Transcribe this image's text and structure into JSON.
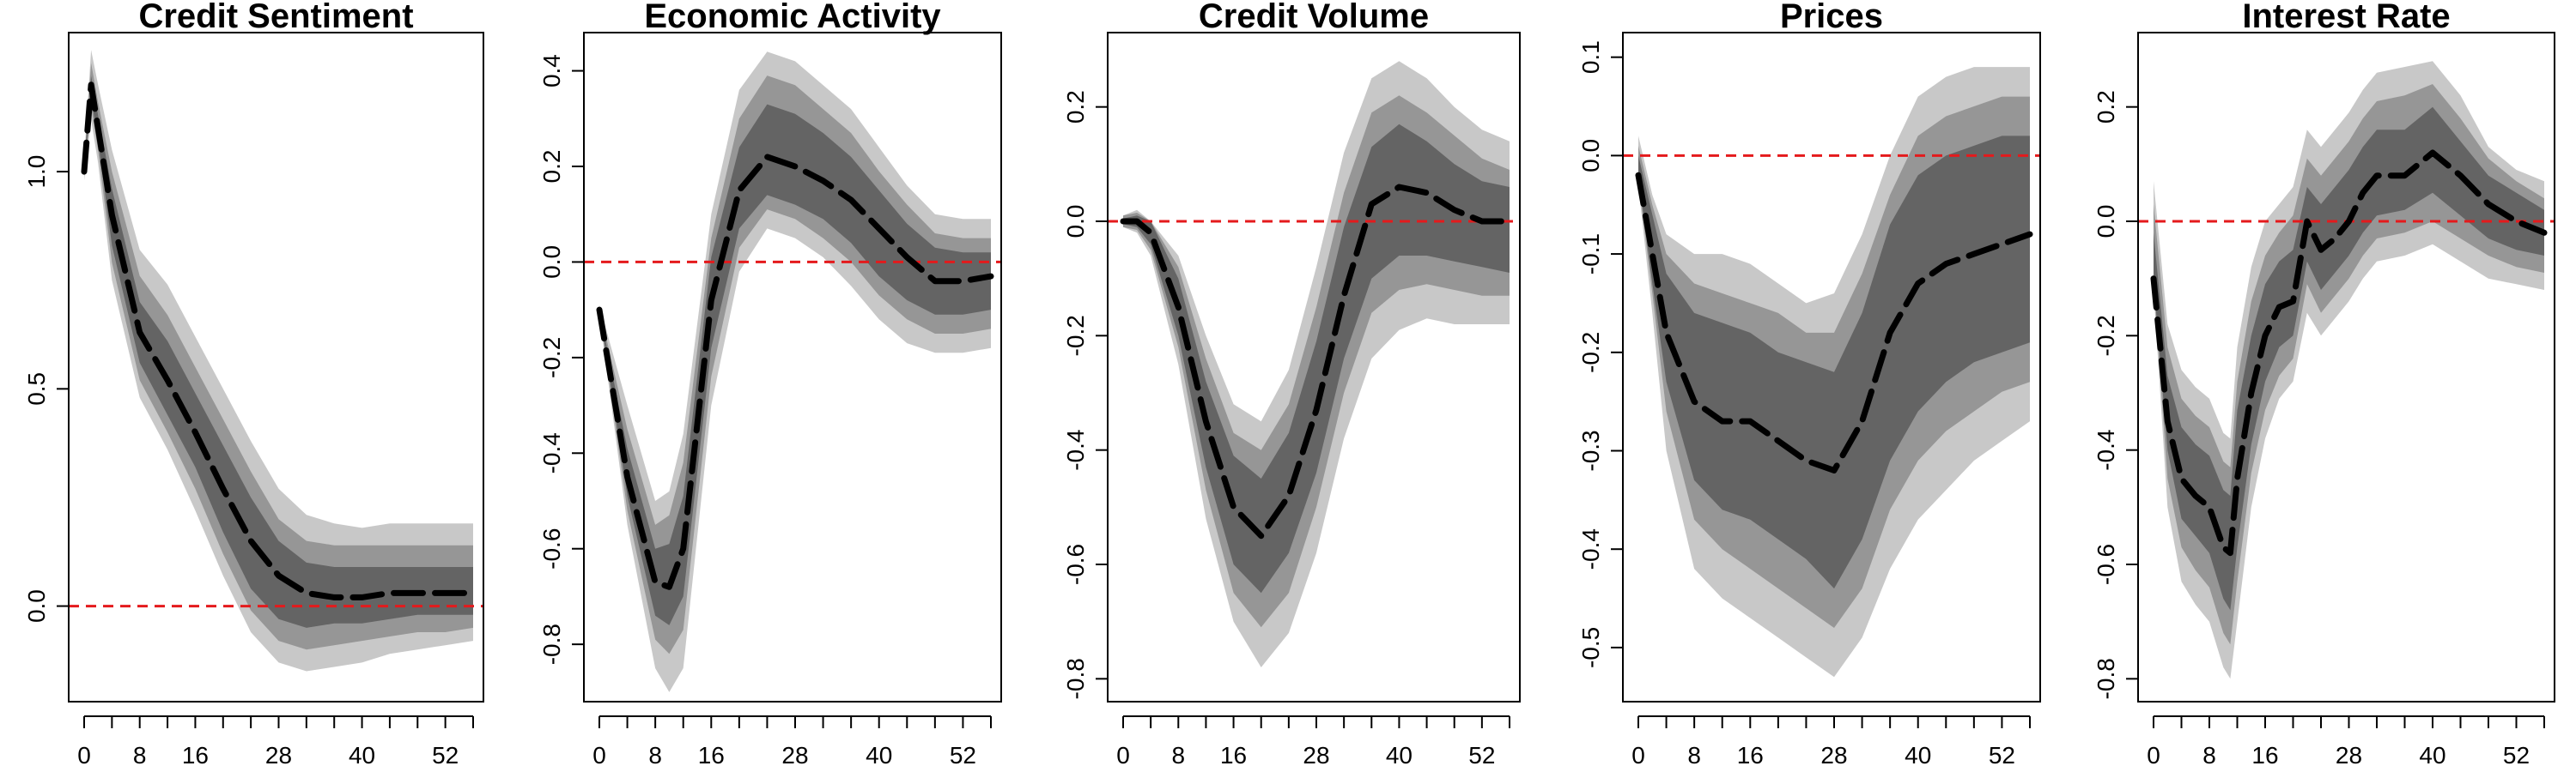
{
  "chart_data": [
    {
      "type": "area",
      "title": "Credit Sentiment",
      "xlabel": "",
      "ylabel": "",
      "x_ticks": [
        0,
        8,
        16,
        28,
        40,
        52
      ],
      "x_tick_labels": [
        "0",
        "8",
        "16",
        "28",
        "40",
        "52"
      ],
      "x_minor_ticks": [
        0,
        4,
        8,
        12,
        16,
        20,
        24,
        28,
        32,
        36,
        40,
        44,
        48,
        52,
        56
      ],
      "xlim": [
        0,
        56
      ],
      "y_ticks": [
        0.0,
        0.5,
        1.0
      ],
      "y_tick_labels": [
        "0.0",
        "0.5",
        "1.0"
      ],
      "ylim": [
        -0.22,
        1.32
      ],
      "zero_line": 0,
      "colors": {
        "inner": "#646464",
        "mid": "#969696",
        "outer": "#c8c8c8",
        "median": "#000000",
        "zero": "#e41a1c"
      },
      "x": [
        0,
        1,
        2,
        4,
        8,
        12,
        16,
        20,
        24,
        28,
        32,
        36,
        40,
        44,
        48,
        52,
        56
      ],
      "median": [
        1.0,
        1.2,
        1.1,
        0.9,
        0.63,
        0.52,
        0.4,
        0.27,
        0.15,
        0.07,
        0.03,
        0.02,
        0.02,
        0.03,
        0.03,
        0.03,
        0.03
      ],
      "bands": [
        {
          "name": "outer",
          "lower": [
            0.98,
            1.12,
            1.02,
            0.75,
            0.48,
            0.36,
            0.22,
            0.07,
            -0.06,
            -0.13,
            -0.15,
            -0.14,
            -0.13,
            -0.11,
            -0.1,
            -0.09,
            -0.08
          ],
          "upper": [
            1.03,
            1.28,
            1.2,
            1.05,
            0.82,
            0.74,
            0.62,
            0.5,
            0.38,
            0.27,
            0.21,
            0.19,
            0.18,
            0.19,
            0.19,
            0.19,
            0.19
          ]
        },
        {
          "name": "mid",
          "lower": [
            0.99,
            1.15,
            1.05,
            0.79,
            0.52,
            0.4,
            0.27,
            0.12,
            -0.01,
            -0.08,
            -0.1,
            -0.09,
            -0.08,
            -0.07,
            -0.06,
            -0.06,
            -0.05
          ],
          "upper": [
            1.02,
            1.25,
            1.16,
            1.0,
            0.76,
            0.67,
            0.55,
            0.43,
            0.31,
            0.2,
            0.15,
            0.14,
            0.14,
            0.14,
            0.14,
            0.14,
            0.14
          ]
        },
        {
          "name": "inner",
          "lower": [
            0.995,
            1.17,
            1.07,
            0.83,
            0.56,
            0.44,
            0.32,
            0.17,
            0.04,
            -0.03,
            -0.05,
            -0.04,
            -0.04,
            -0.03,
            -0.02,
            -0.02,
            -0.02
          ],
          "upper": [
            1.01,
            1.22,
            1.13,
            0.96,
            0.7,
            0.61,
            0.49,
            0.37,
            0.25,
            0.15,
            0.1,
            0.09,
            0.09,
            0.09,
            0.09,
            0.09,
            0.09
          ]
        }
      ]
    },
    {
      "type": "area",
      "title": "Economic Activity",
      "xlabel": "",
      "ylabel": "",
      "x_ticks": [
        0,
        8,
        16,
        28,
        40,
        52
      ],
      "x_tick_labels": [
        "0",
        "8",
        "16",
        "28",
        "40",
        "52"
      ],
      "x_minor_ticks": [
        0,
        4,
        8,
        12,
        16,
        20,
        24,
        28,
        32,
        36,
        40,
        44,
        48,
        52,
        56
      ],
      "xlim": [
        0,
        56
      ],
      "y_ticks": [
        -0.8,
        -0.6,
        -0.4,
        -0.2,
        0.0,
        0.2,
        0.4
      ],
      "y_tick_labels": [
        "-0.8",
        "-0.6",
        "-0.4",
        "-0.2",
        "0.0",
        "0.2",
        "0.4"
      ],
      "ylim": [
        -0.92,
        0.48
      ],
      "zero_line": 0,
      "colors": {
        "inner": "#646464",
        "mid": "#969696",
        "outer": "#c8c8c8",
        "median": "#000000",
        "zero": "#e41a1c"
      },
      "x": [
        0,
        4,
        8,
        10,
        12,
        16,
        20,
        24,
        28,
        32,
        36,
        40,
        44,
        48,
        52,
        56
      ],
      "median": [
        -0.1,
        -0.45,
        -0.67,
        -0.68,
        -0.6,
        -0.08,
        0.15,
        0.22,
        0.2,
        0.17,
        0.13,
        0.07,
        0.01,
        -0.04,
        -0.04,
        -0.03
      ],
      "bands": [
        {
          "name": "outer",
          "lower": [
            -0.11,
            -0.55,
            -0.85,
            -0.9,
            -0.85,
            -0.3,
            -0.02,
            0.07,
            0.05,
            0.01,
            -0.05,
            -0.12,
            -0.17,
            -0.19,
            -0.19,
            -0.18
          ],
          "upper": [
            -0.09,
            -0.3,
            -0.5,
            -0.48,
            -0.36,
            0.1,
            0.36,
            0.44,
            0.42,
            0.37,
            0.32,
            0.24,
            0.16,
            0.1,
            0.09,
            0.09
          ]
        },
        {
          "name": "mid",
          "lower": [
            -0.105,
            -0.52,
            -0.79,
            -0.82,
            -0.77,
            -0.24,
            0.03,
            0.11,
            0.09,
            0.05,
            0.0,
            -0.07,
            -0.12,
            -0.15,
            -0.15,
            -0.14
          ],
          "upper": [
            -0.095,
            -0.35,
            -0.55,
            -0.53,
            -0.42,
            0.05,
            0.3,
            0.39,
            0.37,
            0.32,
            0.27,
            0.19,
            0.12,
            0.06,
            0.05,
            0.05
          ]
        },
        {
          "name": "inner",
          "lower": [
            -0.1,
            -0.49,
            -0.74,
            -0.76,
            -0.7,
            -0.18,
            0.07,
            0.14,
            0.12,
            0.09,
            0.04,
            -0.03,
            -0.08,
            -0.11,
            -0.11,
            -0.1
          ],
          "upper": [
            -0.1,
            -0.39,
            -0.6,
            -0.59,
            -0.49,
            0.01,
            0.24,
            0.33,
            0.31,
            0.27,
            0.22,
            0.15,
            0.08,
            0.03,
            0.02,
            0.02
          ]
        }
      ]
    },
    {
      "type": "area",
      "title": "Credit Volume",
      "xlabel": "",
      "ylabel": "",
      "x_ticks": [
        0,
        8,
        16,
        28,
        40,
        52
      ],
      "x_tick_labels": [
        "0",
        "8",
        "16",
        "28",
        "40",
        "52"
      ],
      "x_minor_ticks": [
        0,
        4,
        8,
        12,
        16,
        20,
        24,
        28,
        32,
        36,
        40,
        44,
        48,
        52,
        56
      ],
      "xlim": [
        0,
        56
      ],
      "y_ticks": [
        -0.8,
        -0.6,
        -0.4,
        -0.2,
        0.0,
        0.2
      ],
      "y_tick_labels": [
        "-0.8",
        "-0.6",
        "-0.4",
        "-0.2",
        "0.0",
        "0.2"
      ],
      "ylim": [
        -0.84,
        0.33
      ],
      "zero_line": 0,
      "colors": {
        "inner": "#646464",
        "mid": "#969696",
        "outer": "#c8c8c8",
        "median": "#000000",
        "zero": "#e41a1c"
      },
      "x": [
        0,
        2,
        4,
        8,
        12,
        16,
        20,
        24,
        28,
        32,
        36,
        40,
        44,
        48,
        52,
        56
      ],
      "median": [
        0.0,
        0.0,
        -0.02,
        -0.15,
        -0.35,
        -0.5,
        -0.55,
        -0.48,
        -0.33,
        -0.13,
        0.03,
        0.06,
        0.05,
        0.02,
        0.0,
        0.0
      ],
      "bands": [
        {
          "name": "outer",
          "lower": [
            -0.01,
            -0.02,
            -0.06,
            -0.25,
            -0.52,
            -0.7,
            -0.78,
            -0.72,
            -0.58,
            -0.38,
            -0.24,
            -0.19,
            -0.17,
            -0.18,
            -0.18,
            -0.18
          ],
          "upper": [
            0.01,
            0.02,
            0.0,
            -0.06,
            -0.2,
            -0.32,
            -0.35,
            -0.26,
            -0.08,
            0.12,
            0.25,
            0.28,
            0.25,
            0.2,
            0.16,
            0.14
          ]
        },
        {
          "name": "mid",
          "lower": [
            -0.01,
            -0.015,
            -0.05,
            -0.22,
            -0.47,
            -0.65,
            -0.71,
            -0.65,
            -0.5,
            -0.3,
            -0.16,
            -0.12,
            -0.11,
            -0.12,
            -0.13,
            -0.13
          ],
          "upper": [
            0.01,
            0.015,
            0.0,
            -0.08,
            -0.24,
            -0.37,
            -0.4,
            -0.32,
            -0.15,
            0.05,
            0.19,
            0.22,
            0.19,
            0.15,
            0.11,
            0.09
          ]
        },
        {
          "name": "inner",
          "lower": [
            -0.005,
            -0.01,
            -0.04,
            -0.2,
            -0.43,
            -0.6,
            -0.65,
            -0.58,
            -0.44,
            -0.24,
            -0.1,
            -0.06,
            -0.06,
            -0.07,
            -0.08,
            -0.09
          ],
          "upper": [
            0.005,
            0.01,
            0.0,
            -0.1,
            -0.28,
            -0.41,
            -0.45,
            -0.37,
            -0.21,
            -0.01,
            0.13,
            0.17,
            0.14,
            0.1,
            0.07,
            0.06
          ]
        }
      ]
    },
    {
      "type": "area",
      "title": "Prices",
      "xlabel": "",
      "ylabel": "",
      "x_ticks": [
        0,
        8,
        16,
        28,
        40,
        52
      ],
      "x_tick_labels": [
        "0",
        "8",
        "16",
        "28",
        "40",
        "52"
      ],
      "x_minor_ticks": [
        0,
        4,
        8,
        12,
        16,
        20,
        24,
        28,
        32,
        36,
        40,
        44,
        48,
        52,
        56
      ],
      "xlim": [
        0,
        56
      ],
      "y_ticks": [
        -0.5,
        -0.4,
        -0.3,
        -0.2,
        -0.1,
        0.0,
        0.1
      ],
      "y_tick_labels": [
        "-0.5",
        "-0.4",
        "-0.3",
        "-0.2",
        "-0.1",
        "0.0",
        "0.1"
      ],
      "ylim": [
        -0.555,
        0.125
      ],
      "zero_line": 0,
      "colors": {
        "inner": "#646464",
        "mid": "#969696",
        "outer": "#c8c8c8",
        "median": "#000000",
        "zero": "#e41a1c"
      },
      "x": [
        0,
        2,
        4,
        8,
        12,
        16,
        20,
        24,
        28,
        32,
        36,
        40,
        44,
        48,
        52,
        56
      ],
      "median": [
        -0.02,
        -0.1,
        -0.18,
        -0.25,
        -0.27,
        -0.27,
        -0.29,
        -0.31,
        -0.32,
        -0.27,
        -0.18,
        -0.13,
        -0.11,
        -0.1,
        -0.09,
        -0.08
      ],
      "bands": [
        {
          "name": "outer",
          "lower": [
            -0.03,
            -0.16,
            -0.3,
            -0.42,
            -0.45,
            -0.47,
            -0.49,
            -0.51,
            -0.53,
            -0.49,
            -0.42,
            -0.37,
            -0.34,
            -0.31,
            -0.29,
            -0.27
          ],
          "upper": [
            0.02,
            -0.04,
            -0.08,
            -0.1,
            -0.1,
            -0.11,
            -0.13,
            -0.15,
            -0.14,
            -0.08,
            0.0,
            0.06,
            0.08,
            0.09,
            0.09,
            0.09
          ]
        },
        {
          "name": "mid",
          "lower": [
            -0.025,
            -0.14,
            -0.26,
            -0.37,
            -0.4,
            -0.42,
            -0.44,
            -0.46,
            -0.48,
            -0.44,
            -0.36,
            -0.31,
            -0.28,
            -0.26,
            -0.24,
            -0.23
          ],
          "upper": [
            0.01,
            -0.05,
            -0.1,
            -0.13,
            -0.14,
            -0.15,
            -0.16,
            -0.18,
            -0.18,
            -0.12,
            -0.04,
            0.02,
            0.04,
            0.05,
            0.06,
            0.06
          ]
        },
        {
          "name": "inner",
          "lower": [
            -0.02,
            -0.13,
            -0.23,
            -0.33,
            -0.36,
            -0.37,
            -0.39,
            -0.41,
            -0.44,
            -0.39,
            -0.31,
            -0.26,
            -0.23,
            -0.21,
            -0.2,
            -0.19
          ],
          "upper": [
            0.0,
            -0.06,
            -0.12,
            -0.16,
            -0.17,
            -0.18,
            -0.2,
            -0.21,
            -0.22,
            -0.16,
            -0.07,
            -0.02,
            0.0,
            0.01,
            0.02,
            0.02
          ]
        }
      ]
    },
    {
      "type": "area",
      "title": "Interest Rate",
      "xlabel": "",
      "ylabel": "",
      "x_ticks": [
        0,
        8,
        16,
        28,
        40,
        52
      ],
      "x_tick_labels": [
        "0",
        "8",
        "16",
        "28",
        "40",
        "52"
      ],
      "x_minor_ticks": [
        0,
        4,
        8,
        12,
        16,
        20,
        24,
        28,
        32,
        36,
        40,
        44,
        48,
        52,
        56
      ],
      "xlim": [
        0,
        56
      ],
      "y_ticks": [
        -0.8,
        -0.6,
        -0.4,
        -0.2,
        0.0,
        0.2
      ],
      "y_tick_labels": [
        "-0.8",
        "-0.6",
        "-0.4",
        "-0.2",
        "0.0",
        "0.2"
      ],
      "ylim": [
        -0.84,
        0.33
      ],
      "zero_line": 0,
      "colors": {
        "inner": "#646464",
        "mid": "#969696",
        "outer": "#c8c8c8",
        "median": "#000000",
        "zero": "#e41a1c"
      },
      "x": [
        0,
        2,
        4,
        6,
        8,
        10,
        11,
        12,
        14,
        16,
        18,
        20,
        22,
        24,
        26,
        28,
        30,
        32,
        36,
        40,
        44,
        48,
        52,
        56
      ],
      "median": [
        -0.1,
        -0.35,
        -0.45,
        -0.48,
        -0.5,
        -0.57,
        -0.58,
        -0.45,
        -0.3,
        -0.2,
        -0.15,
        -0.14,
        0.0,
        -0.05,
        -0.03,
        0.0,
        0.05,
        0.08,
        0.08,
        0.12,
        0.08,
        0.03,
        0.0,
        -0.02
      ],
      "bands": [
        {
          "name": "outer",
          "lower": [
            -0.12,
            -0.5,
            -0.63,
            -0.67,
            -0.7,
            -0.78,
            -0.8,
            -0.7,
            -0.5,
            -0.38,
            -0.31,
            -0.28,
            -0.16,
            -0.2,
            -0.17,
            -0.14,
            -0.1,
            -0.07,
            -0.06,
            -0.04,
            -0.07,
            -0.1,
            -0.11,
            -0.12
          ],
          "upper": [
            0.07,
            -0.18,
            -0.26,
            -0.29,
            -0.31,
            -0.37,
            -0.38,
            -0.22,
            -0.08,
            0.0,
            0.03,
            0.06,
            0.16,
            0.13,
            0.16,
            0.19,
            0.23,
            0.26,
            0.27,
            0.28,
            0.22,
            0.13,
            0.09,
            0.07
          ]
        },
        {
          "name": "mid",
          "lower": [
            -0.11,
            -0.45,
            -0.57,
            -0.61,
            -0.64,
            -0.72,
            -0.74,
            -0.63,
            -0.44,
            -0.33,
            -0.27,
            -0.24,
            -0.11,
            -0.16,
            -0.13,
            -0.1,
            -0.06,
            -0.03,
            -0.02,
            0.0,
            -0.03,
            -0.06,
            -0.08,
            -0.09
          ],
          "upper": [
            0.03,
            -0.22,
            -0.31,
            -0.34,
            -0.36,
            -0.42,
            -0.43,
            -0.28,
            -0.14,
            -0.06,
            -0.02,
            0.01,
            0.11,
            0.08,
            0.11,
            0.14,
            0.18,
            0.21,
            0.22,
            0.24,
            0.18,
            0.11,
            0.07,
            0.04
          ]
        },
        {
          "name": "inner",
          "lower": [
            -0.105,
            -0.4,
            -0.52,
            -0.55,
            -0.58,
            -0.66,
            -0.68,
            -0.57,
            -0.39,
            -0.28,
            -0.22,
            -0.2,
            -0.07,
            -0.12,
            -0.09,
            -0.06,
            -0.02,
            0.01,
            0.02,
            0.05,
            0.01,
            -0.03,
            -0.05,
            -0.06
          ],
          "upper": [
            -0.02,
            -0.27,
            -0.36,
            -0.39,
            -0.41,
            -0.47,
            -0.48,
            -0.33,
            -0.2,
            -0.11,
            -0.07,
            -0.05,
            0.06,
            0.03,
            0.06,
            0.09,
            0.13,
            0.16,
            0.16,
            0.2,
            0.14,
            0.08,
            0.05,
            0.02
          ]
        }
      ]
    }
  ]
}
